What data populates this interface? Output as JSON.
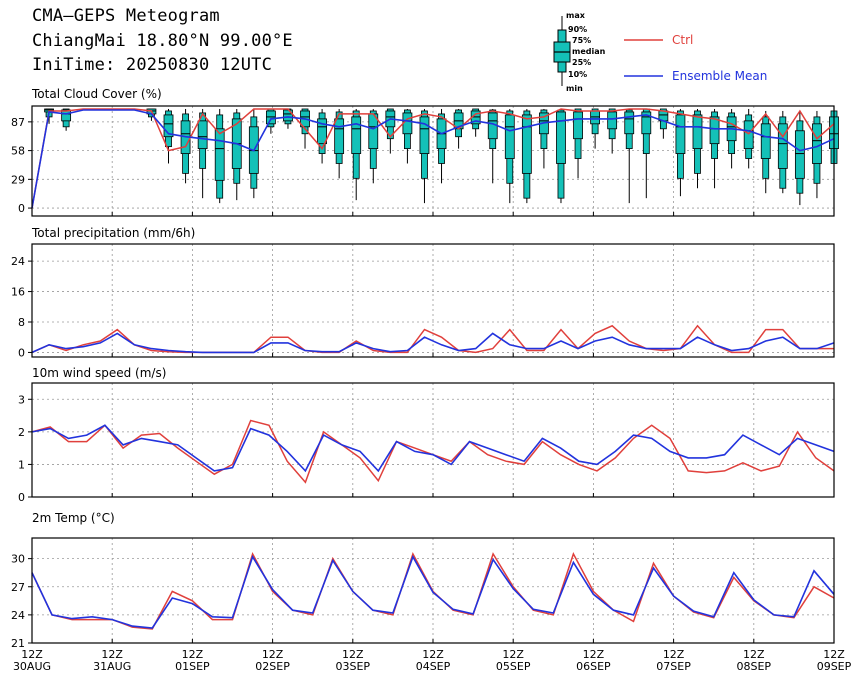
{
  "header": {
    "line1": "CMA—GEPS Meteogram",
    "line2": "ChiangMai 18.80°N 99.00°E",
    "line3": "IniTime: 20250830 12UTC"
  },
  "legend": {
    "box_labels": [
      "max",
      "90%",
      "75%",
      "median",
      "25%",
      "10%",
      "min"
    ],
    "ctrl_label": "Ctrl",
    "mean_label": "Ensemble Mean",
    "ctrl_color": "#e0403c",
    "mean_color": "#2233dd",
    "box_color": "#14c1b8"
  },
  "x_axis": {
    "labels": [
      {
        "hour": "12Z",
        "date": "30AUG"
      },
      {
        "hour": "12Z",
        "date": "31AUG"
      },
      {
        "hour": "12Z",
        "date": "01SEP"
      },
      {
        "hour": "12Z",
        "date": "02SEP"
      },
      {
        "hour": "12Z",
        "date": "03SEP"
      },
      {
        "hour": "12Z",
        "date": "04SEP"
      },
      {
        "hour": "12Z",
        "date": "05SEP"
      },
      {
        "hour": "12Z",
        "date": "06SEP"
      },
      {
        "hour": "12Z",
        "date": "07SEP"
      },
      {
        "hour": "12Z",
        "date": "08SEP"
      },
      {
        "hour": "12Z",
        "date": "09SEP"
      }
    ]
  },
  "chart_data": [
    {
      "type": "box",
      "title": "Total Cloud Cover (%)",
      "ylim": [
        -8,
        103
      ],
      "yticks": [
        0,
        29,
        58,
        87
      ],
      "ctrl": [
        0,
        98,
        98,
        100,
        100,
        100,
        100,
        98,
        58,
        62,
        95,
        75,
        85,
        100,
        100,
        100,
        80,
        60,
        95,
        95,
        95,
        72,
        90,
        95,
        92,
        80,
        95,
        98,
        95,
        90,
        92,
        100,
        98,
        98,
        98,
        100,
        100,
        98,
        95,
        92,
        90,
        85,
        75,
        95,
        72,
        98,
        70,
        85
      ],
      "mean": [
        0,
        97,
        95,
        99,
        99,
        99,
        99,
        95,
        75,
        72,
        70,
        68,
        65,
        58,
        90,
        92,
        90,
        85,
        82,
        85,
        80,
        90,
        88,
        85,
        75,
        82,
        88,
        85,
        78,
        82,
        86,
        88,
        90,
        90,
        90,
        92,
        94,
        88,
        82,
        82,
        80,
        80,
        78,
        72,
        70,
        58,
        62,
        70
      ],
      "boxes": [
        null,
        {
          "min": 85,
          "p10": 92,
          "p25": 97,
          "med": 99,
          "p75": 100,
          "p90": 100,
          "max": 100
        },
        {
          "min": 78,
          "p10": 82,
          "p25": 88,
          "med": 95,
          "p75": 99,
          "p90": 100,
          "max": 100
        },
        null,
        null,
        null,
        null,
        {
          "min": 88,
          "p10": 92,
          "p25": 95,
          "med": 98,
          "p75": 100,
          "p90": 100,
          "max": 100
        },
        {
          "min": 45,
          "p10": 62,
          "p25": 72,
          "med": 85,
          "p75": 94,
          "p90": 98,
          "max": 100
        },
        {
          "min": 25,
          "p10": 35,
          "p25": 55,
          "med": 75,
          "p75": 88,
          "p90": 95,
          "max": 100
        },
        {
          "min": 10,
          "p10": 40,
          "p25": 60,
          "med": 72,
          "p75": 88,
          "p90": 96,
          "max": 100
        },
        {
          "min": 5,
          "p10": 10,
          "p25": 28,
          "med": 60,
          "p75": 80,
          "p90": 94,
          "max": 100
        },
        {
          "min": 8,
          "p10": 25,
          "p25": 40,
          "med": 65,
          "p75": 90,
          "p90": 96,
          "max": 100
        },
        {
          "min": 10,
          "p10": 20,
          "p25": 35,
          "med": 58,
          "p75": 82,
          "p90": 92,
          "max": 100
        },
        {
          "min": 75,
          "p10": 82,
          "p25": 85,
          "med": 92,
          "p75": 98,
          "p90": 100,
          "max": 100
        },
        {
          "min": 80,
          "p10": 85,
          "p25": 88,
          "med": 95,
          "p75": 99,
          "p90": 100,
          "max": 100
        },
        {
          "min": 60,
          "p10": 75,
          "p25": 82,
          "med": 92,
          "p75": 98,
          "p90": 100,
          "max": 100
        },
        {
          "min": 45,
          "p10": 55,
          "p25": 65,
          "med": 82,
          "p75": 90,
          "p90": 96,
          "max": 100
        },
        {
          "min": 30,
          "p10": 45,
          "p25": 55,
          "med": 80,
          "p75": 90,
          "p90": 97,
          "max": 100
        },
        {
          "min": 8,
          "p10": 30,
          "p25": 55,
          "med": 80,
          "p75": 92,
          "p90": 98,
          "max": 100
        },
        {
          "min": 25,
          "p10": 40,
          "p25": 60,
          "med": 82,
          "p75": 95,
          "p90": 98,
          "max": 100
        },
        {
          "min": 55,
          "p10": 70,
          "p25": 82,
          "med": 92,
          "p75": 98,
          "p90": 100,
          "max": 100
        },
        {
          "min": 45,
          "p10": 60,
          "p25": 75,
          "med": 88,
          "p75": 96,
          "p90": 99,
          "max": 100
        },
        {
          "min": 5,
          "p10": 30,
          "p25": 55,
          "med": 80,
          "p75": 92,
          "p90": 98,
          "max": 100
        },
        {
          "min": 25,
          "p10": 45,
          "p25": 60,
          "med": 75,
          "p75": 90,
          "p90": 95,
          "max": 100
        },
        {
          "min": 60,
          "p10": 72,
          "p25": 80,
          "med": 88,
          "p75": 96,
          "p90": 99,
          "max": 100
        },
        {
          "min": 72,
          "p10": 80,
          "p25": 85,
          "med": 92,
          "p75": 98,
          "p90": 100,
          "max": 100
        },
        {
          "min": 25,
          "p10": 60,
          "p25": 70,
          "med": 88,
          "p75": 96,
          "p90": 99,
          "max": 100
        },
        {
          "min": 5,
          "p10": 25,
          "p25": 50,
          "med": 82,
          "p75": 94,
          "p90": 98,
          "max": 100
        },
        {
          "min": 5,
          "p10": 10,
          "p25": 35,
          "med": 82,
          "p75": 94,
          "p90": 98,
          "max": 100
        },
        {
          "min": 40,
          "p10": 60,
          "p25": 75,
          "med": 88,
          "p75": 96,
          "p90": 99,
          "max": 100
        },
        {
          "min": 5,
          "p10": 10,
          "p25": 45,
          "med": 88,
          "p75": 97,
          "p90": 99,
          "max": 100
        },
        {
          "min": 30,
          "p10": 50,
          "p25": 70,
          "med": 90,
          "p75": 97,
          "p90": 100,
          "max": 100
        },
        {
          "min": 60,
          "p10": 75,
          "p25": 85,
          "med": 92,
          "p75": 98,
          "p90": 100,
          "max": 100
        },
        {
          "min": 55,
          "p10": 70,
          "p25": 80,
          "med": 90,
          "p75": 97,
          "p90": 100,
          "max": 100
        },
        {
          "min": 5,
          "p10": 60,
          "p25": 75,
          "med": 90,
          "p75": 97,
          "p90": 99,
          "max": 100
        },
        {
          "min": 10,
          "p10": 55,
          "p25": 75,
          "med": 92,
          "p75": 97,
          "p90": 100,
          "max": 100
        },
        {
          "min": 70,
          "p10": 80,
          "p25": 88,
          "med": 94,
          "p75": 98,
          "p90": 100,
          "max": 100
        },
        {
          "min": 12,
          "p10": 30,
          "p25": 55,
          "med": 82,
          "p75": 94,
          "p90": 98,
          "max": 100
        },
        {
          "min": 20,
          "p10": 35,
          "p25": 60,
          "med": 82,
          "p75": 94,
          "p90": 98,
          "max": 100
        },
        {
          "min": 20,
          "p10": 50,
          "p25": 65,
          "med": 80,
          "p75": 92,
          "p90": 97,
          "max": 100
        },
        {
          "min": 40,
          "p10": 55,
          "p25": 68,
          "med": 82,
          "p75": 92,
          "p90": 96,
          "max": 100
        },
        {
          "min": 40,
          "p10": 50,
          "p25": 60,
          "med": 78,
          "p75": 88,
          "p90": 94,
          "max": 100
        },
        {
          "min": 15,
          "p10": 30,
          "p25": 50,
          "med": 72,
          "p75": 85,
          "p90": 92,
          "max": 98
        },
        {
          "min": 15,
          "p10": 20,
          "p25": 40,
          "med": 65,
          "p75": 85,
          "p90": 92,
          "max": 98
        },
        {
          "min": 3,
          "p10": 15,
          "p25": 30,
          "med": 55,
          "p75": 78,
          "p90": 88,
          "max": 97
        },
        {
          "min": 10,
          "p10": 25,
          "p25": 45,
          "med": 68,
          "p75": 85,
          "p90": 92,
          "max": 98
        },
        {
          "min": 30,
          "p10": 45,
          "p25": 60,
          "med": 75,
          "p75": 92,
          "p90": 98,
          "max": 100
        }
      ]
    },
    {
      "type": "box",
      "title": "Total precipitation (mm/6h)",
      "ylim": [
        -1.2,
        28.5
      ],
      "yticks": [
        0,
        8,
        16,
        24
      ],
      "ctrl": [
        0,
        2,
        0.5,
        2,
        3,
        6,
        2,
        0.5,
        0.2,
        0,
        0,
        0,
        0,
        0,
        4,
        4,
        0.5,
        0,
        0,
        3,
        0.5,
        0,
        0,
        6,
        4,
        0.5,
        0,
        1,
        6,
        0.5,
        0.5,
        6,
        1,
        5,
        7,
        3,
        1,
        0.5,
        1,
        7,
        2,
        0,
        0,
        6,
        6,
        1,
        1,
        1
      ],
      "mean": [
        0,
        2,
        1,
        1.5,
        2.5,
        5,
        2,
        1,
        0.5,
        0.2,
        0,
        0,
        0,
        0,
        2.5,
        2.5,
        0.5,
        0.2,
        0.2,
        2.5,
        1,
        0.2,
        0.5,
        4,
        2,
        0.5,
        1,
        5,
        2,
        1,
        1,
        3,
        1,
        3,
        4,
        2,
        1,
        1,
        1,
        4,
        2,
        0.5,
        1,
        3,
        4,
        1,
        1,
        2.5
      ]
    },
    {
      "type": "box",
      "title": "10m wind speed (m/s)",
      "ylim": [
        0,
        3.5
      ],
      "yticks": [
        0,
        1,
        2,
        3
      ],
      "ctrl": [
        2,
        2.15,
        1.7,
        1.7,
        2.2,
        1.5,
        1.9,
        1.95,
        1.5,
        1.1,
        0.7,
        1,
        2.35,
        2.2,
        1.1,
        0.45,
        2,
        1.6,
        1.2,
        0.5,
        1.7,
        1.5,
        1.3,
        1.1,
        1.7,
        1.3,
        1.1,
        1,
        1.7,
        1.3,
        1,
        0.8,
        1.2,
        1.8,
        2.2,
        1.8,
        0.8,
        0.75,
        0.8,
        1.05,
        0.8,
        0.95,
        2,
        1.2,
        0.8
      ],
      "mean": [
        2,
        2.1,
        1.8,
        1.9,
        2.2,
        1.6,
        1.8,
        1.7,
        1.6,
        1.2,
        0.8,
        0.9,
        2.1,
        1.9,
        1.4,
        0.8,
        1.9,
        1.6,
        1.4,
        0.8,
        1.7,
        1.4,
        1.3,
        1.0,
        1.7,
        1.5,
        1.3,
        1.1,
        1.8,
        1.5,
        1.1,
        1.0,
        1.4,
        1.9,
        1.8,
        1.4,
        1.2,
        1.2,
        1.3,
        1.9,
        1.6,
        1.3,
        1.8,
        1.6,
        1.4
      ]
    },
    {
      "type": "box",
      "title": "2m Temp (°C)",
      "ylim": [
        21,
        32.2
      ],
      "yticks": [
        21,
        24,
        27,
        30
      ],
      "ctrl": [
        28.5,
        24,
        23.5,
        23.5,
        23.5,
        22.7,
        22.5,
        26.5,
        25.5,
        23.5,
        23.5,
        30.5,
        26.5,
        24.5,
        24,
        30,
        26.5,
        24.5,
        24,
        30.5,
        26.5,
        24.5,
        24,
        30.5,
        27,
        24.5,
        24,
        30.5,
        26.5,
        24.5,
        23.3,
        29.5,
        26,
        24.3,
        23.7,
        28,
        25.5,
        24,
        23.7,
        27,
        25.8
      ],
      "mean": [
        28.5,
        24,
        23.6,
        23.8,
        23.5,
        22.8,
        22.6,
        25.8,
        25.2,
        23.8,
        23.7,
        30.2,
        26.7,
        24.5,
        24.2,
        29.8,
        26.5,
        24.5,
        24.2,
        30.2,
        26.4,
        24.6,
        24.1,
        29.9,
        26.8,
        24.6,
        24.2,
        29.6,
        26.2,
        24.5,
        24,
        29,
        26,
        24.4,
        23.8,
        28.5,
        25.6,
        24,
        23.8,
        28.7,
        26.2
      ]
    }
  ]
}
